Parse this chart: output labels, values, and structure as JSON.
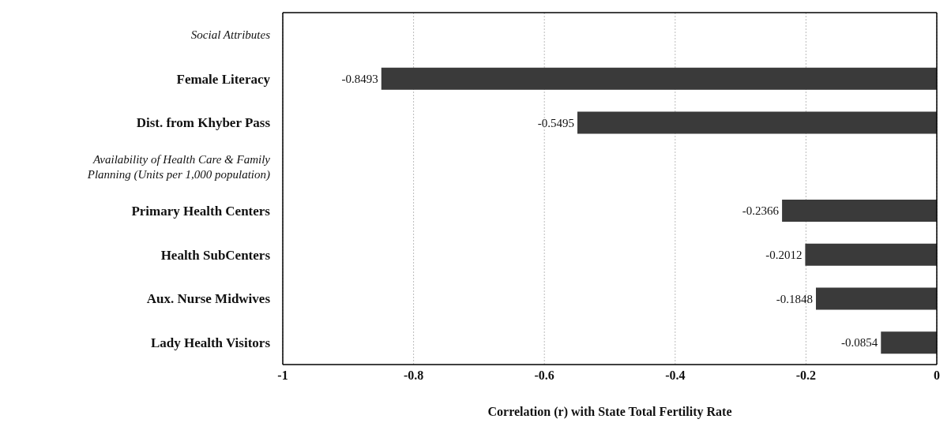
{
  "chart_data": {
    "type": "bar",
    "orientation": "horizontal",
    "xlabel": "Correlation (r) with State Total Fertility Rate",
    "categories": [
      "Social Attributes",
      "Female Literacy",
      "Dist. from Khyber Pass",
      "Availability of Health Care & Family Planning (Units per 1,000 population)",
      "Primary Health Centers",
      "Health SubCenters",
      "Aux. Nurse Midwives",
      "Lady Health Visitors"
    ],
    "values": [
      null,
      -0.8493,
      -0.5495,
      null,
      -0.2366,
      -0.2012,
      -0.1848,
      -0.0854
    ],
    "color": "#3a3a3a",
    "xlim": [
      -1,
      0
    ],
    "xticks": [
      -1,
      -0.8,
      -0.6,
      -0.4,
      -0.2,
      0
    ],
    "grid": "x",
    "data_labels": true
  }
}
